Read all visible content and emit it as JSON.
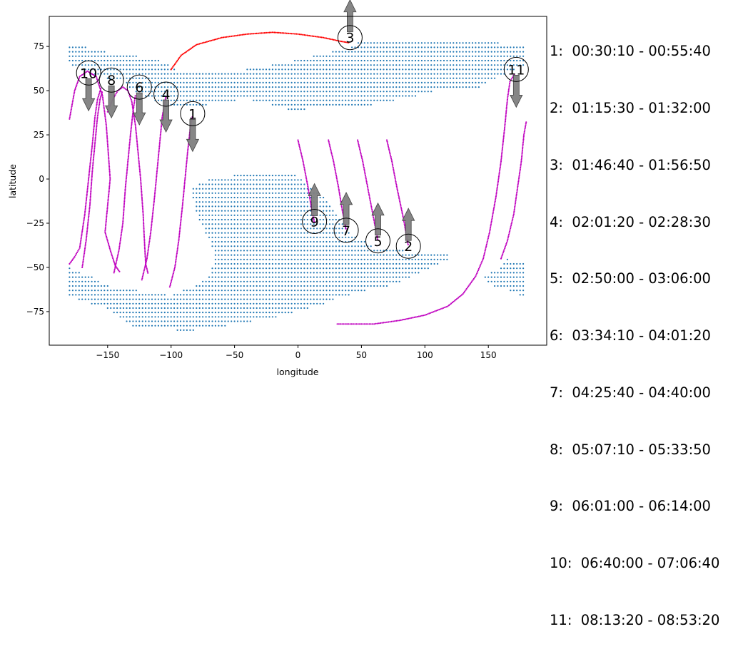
{
  "chart_data": {
    "type": "scatter",
    "title": "",
    "xlabel": "longitude",
    "ylabel": "latitude",
    "xlim": [
      -196,
      196
    ],
    "ylim": [
      -94,
      92
    ],
    "xticks": [
      -150,
      -100,
      -50,
      0,
      50,
      100,
      150
    ],
    "yticks": [
      -75,
      -50,
      -25,
      0,
      25,
      50,
      75
    ],
    "grid": false,
    "colors": {
      "land": "#1f77b4",
      "track": "#bf00bf",
      "track_red": "#ff0000",
      "arrow": "#808080"
    },
    "track_ranges": [
      "1:  00:30:10 - 00:55:40",
      "2:  01:15:30 - 01:32:00",
      "3:  01:46:40 - 01:56:50",
      "4:  02:01:20 - 02:28:30",
      "5:  02:50:00 - 03:06:00",
      "6:  03:34:10 - 04:01:20",
      "7:  04:25:40 - 04:40:00",
      "8:  05:07:10 - 05:33:50",
      "9:  06:01:00 - 06:14:00",
      "10:  06:40:00 - 07:06:40",
      "11:  08:13:20 - 08:53:20"
    ],
    "markers": [
      {
        "label": "1",
        "lon": -83,
        "lat": 37,
        "dir": "down"
      },
      {
        "label": "2",
        "lon": 87,
        "lat": -38,
        "dir": "up"
      },
      {
        "label": "3",
        "lon": 41,
        "lat": 80,
        "dir": "up"
      },
      {
        "label": "4",
        "lon": -104,
        "lat": 48,
        "dir": "down"
      },
      {
        "label": "5",
        "lon": 63,
        "lat": -35,
        "dir": "up"
      },
      {
        "label": "6",
        "lon": -125,
        "lat": 52,
        "dir": "down"
      },
      {
        "label": "7",
        "lon": 38,
        "lat": -29,
        "dir": "up"
      },
      {
        "label": "8",
        "lon": -147,
        "lat": 56,
        "dir": "down"
      },
      {
        "label": "9",
        "lon": 13,
        "lat": -24,
        "dir": "up"
      },
      {
        "label": "10",
        "lon": -165,
        "lat": 60,
        "dir": "down"
      },
      {
        "label": "11",
        "lon": 172,
        "lat": 62,
        "dir": "down"
      }
    ],
    "tracks": [
      {
        "color": "track",
        "points": [
          [
            -180,
            34
          ],
          [
            -176,
            50
          ],
          [
            -172,
            58
          ],
          [
            -166,
            61
          ],
          [
            -159,
            58
          ],
          [
            -154,
            47
          ],
          [
            -151,
            30
          ],
          [
            -148,
            0
          ],
          [
            -152,
            -30
          ],
          [
            -148,
            -40
          ],
          [
            -144,
            -49
          ],
          [
            -140,
            -53
          ]
        ]
      },
      {
        "color": "track",
        "points": [
          [
            -150,
            38
          ],
          [
            -146,
            45
          ],
          [
            -142,
            50
          ],
          [
            -138,
            52
          ],
          [
            -134,
            50
          ],
          [
            -131,
            44
          ],
          [
            -128,
            30
          ],
          [
            -126,
            15
          ],
          [
            -124,
            0
          ],
          [
            -122,
            -20
          ],
          [
            -121,
            -35
          ],
          [
            -120,
            -48
          ],
          [
            -118,
            -54
          ]
        ]
      },
      {
        "color": "track",
        "points": [
          [
            -184,
            -50
          ],
          [
            -180,
            -48
          ],
          [
            -176,
            -44
          ],
          [
            -172,
            -39
          ],
          [
            -168,
            -20
          ],
          [
            -165,
            0
          ],
          [
            -162,
            20
          ],
          [
            -160,
            35
          ],
          [
            -158,
            45
          ],
          [
            -155,
            52
          ]
        ]
      },
      {
        "color": "track",
        "points": [
          [
            -170,
            -50
          ],
          [
            -167,
            -35
          ],
          [
            -164,
            -15
          ],
          [
            -162,
            5
          ],
          [
            -160,
            20
          ],
          [
            -158,
            35
          ],
          [
            -156,
            45
          ],
          [
            -154,
            50
          ]
        ]
      },
      {
        "color": "track",
        "points": [
          [
            -145,
            -53
          ],
          [
            -141,
            -40
          ],
          [
            -138,
            -25
          ],
          [
            -136,
            -5
          ],
          [
            -134,
            10
          ],
          [
            -132,
            25
          ],
          [
            -130,
            38
          ],
          [
            -128,
            48
          ]
        ]
      },
      {
        "color": "track",
        "points": [
          [
            -123,
            -57
          ],
          [
            -119,
            -45
          ],
          [
            -116,
            -30
          ],
          [
            -113,
            -10
          ],
          [
            -111,
            5
          ],
          [
            -109,
            20
          ],
          [
            -107,
            35
          ],
          [
            -104,
            47
          ]
        ]
      },
      {
        "color": "track",
        "points": [
          [
            -101,
            -61
          ],
          [
            -97,
            -50
          ],
          [
            -94,
            -35
          ],
          [
            -91,
            -15
          ],
          [
            -89,
            0
          ],
          [
            -87,
            15
          ],
          [
            -85,
            28
          ],
          [
            -83,
            36
          ]
        ]
      },
      {
        "color": "track",
        "points": [
          [
            0,
            22
          ],
          [
            4,
            10
          ],
          [
            8,
            -5
          ],
          [
            11,
            -18
          ],
          [
            13,
            -25
          ]
        ]
      },
      {
        "color": "track",
        "points": [
          [
            24,
            22
          ],
          [
            28,
            10
          ],
          [
            32,
            -5
          ],
          [
            35,
            -18
          ],
          [
            38,
            -29
          ]
        ]
      },
      {
        "color": "track",
        "points": [
          [
            47,
            22
          ],
          [
            51,
            10
          ],
          [
            55,
            -5
          ],
          [
            59,
            -20
          ],
          [
            63,
            -35
          ]
        ]
      },
      {
        "color": "track",
        "points": [
          [
            70,
            22
          ],
          [
            74,
            10
          ],
          [
            78,
            -5
          ],
          [
            83,
            -22
          ],
          [
            87,
            -38
          ]
        ]
      },
      {
        "color": "track",
        "points": [
          [
            160,
            -45
          ],
          [
            165,
            -35
          ],
          [
            170,
            -20
          ],
          [
            173,
            -5
          ],
          [
            176,
            10
          ],
          [
            178,
            25
          ],
          [
            180,
            33
          ]
        ]
      },
      {
        "color": "track",
        "points": [
          [
            31,
            -82
          ],
          [
            60,
            -82
          ],
          [
            80,
            -80
          ],
          [
            100,
            -77
          ],
          [
            118,
            -72
          ],
          [
            130,
            -65
          ],
          [
            140,
            -55
          ],
          [
            146,
            -45
          ],
          [
            151,
            -30
          ],
          [
            156,
            -10
          ],
          [
            160,
            10
          ],
          [
            163,
            30
          ],
          [
            165,
            45
          ],
          [
            167,
            55
          ],
          [
            171,
            60
          ]
        ]
      },
      {
        "color": "track_red",
        "points": [
          [
            -100,
            62
          ],
          [
            -92,
            70
          ],
          [
            -80,
            76
          ],
          [
            -60,
            80
          ],
          [
            -40,
            82
          ],
          [
            -20,
            83
          ],
          [
            0,
            82
          ],
          [
            20,
            80
          ],
          [
            33,
            78
          ],
          [
            41,
            77
          ]
        ]
      }
    ]
  }
}
